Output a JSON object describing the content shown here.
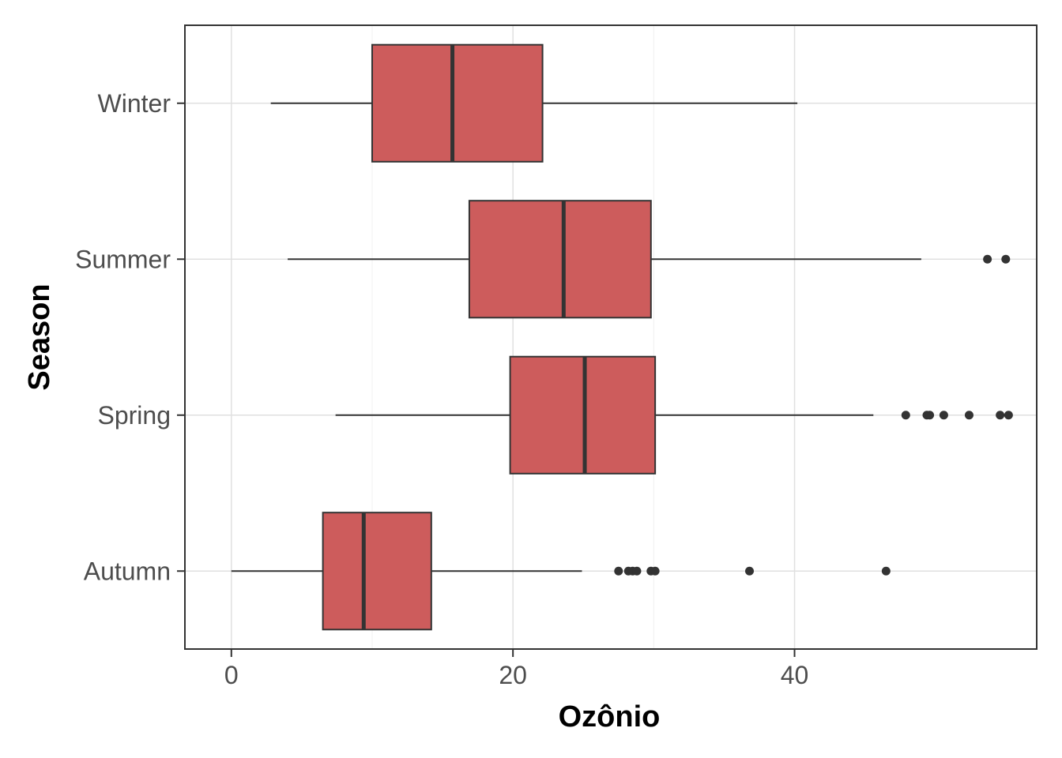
{
  "chart_data": {
    "type": "boxplot",
    "orientation": "horizontal",
    "xlabel": "Ozônio",
    "ylabel": "Season",
    "xlim": [
      -3.3,
      57.2
    ],
    "x_ticks": [
      0,
      20,
      40
    ],
    "grid": true,
    "colors": {
      "box_fill": "#cd5c5c",
      "box_stroke": "#333333",
      "grid": "#e0e0e0",
      "panel_border": "#333333"
    },
    "categories": [
      "Winter",
      "Summer",
      "Spring",
      "Autumn"
    ],
    "boxes": [
      {
        "category": "Winter",
        "whisker_low": 2.8,
        "q1": 10.0,
        "median": 15.7,
        "q3": 22.1,
        "whisker_high": 40.2,
        "outliers": []
      },
      {
        "category": "Summer",
        "whisker_low": 4.0,
        "q1": 16.9,
        "median": 23.6,
        "q3": 29.8,
        "whisker_high": 49.0,
        "outliers": [
          53.7,
          55.0
        ]
      },
      {
        "category": "Spring",
        "whisker_low": 7.4,
        "q1": 19.8,
        "median": 25.1,
        "q3": 30.1,
        "whisker_high": 45.6,
        "outliers": [
          47.9,
          49.4,
          49.6,
          50.6,
          52.4,
          54.6,
          55.2
        ]
      },
      {
        "category": "Autumn",
        "whisker_low": 0.0,
        "q1": 6.5,
        "median": 9.4,
        "q3": 14.2,
        "whisker_high": 24.9,
        "outliers": [
          27.5,
          28.2,
          28.5,
          28.8,
          29.8,
          30.1,
          36.8,
          46.5
        ]
      }
    ]
  }
}
